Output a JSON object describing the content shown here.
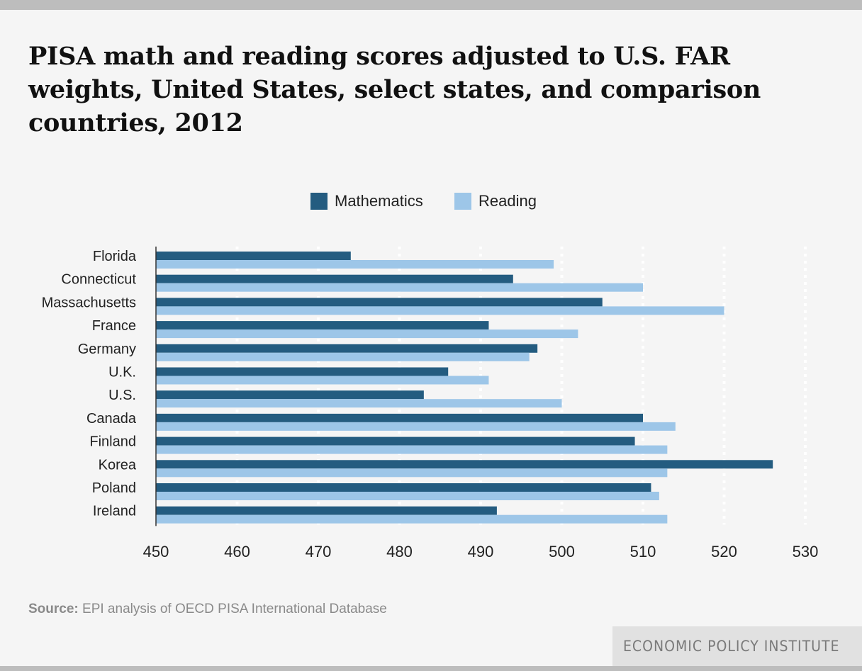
{
  "title": "PISA math and reading scores adjusted to U.S. FAR weights, United States, select states, and comparison countries, 2012",
  "legend": {
    "math_label": "Mathematics",
    "reading_label": "Reading"
  },
  "colors": {
    "math": "#245c80",
    "reading": "#9dc6e8",
    "grid": "#ffffff",
    "axis": "#333333",
    "text": "#222222"
  },
  "source": {
    "label": "Source:",
    "text": " EPI analysis of OECD PISA International Database"
  },
  "brand": "ECONOMIC POLICY INSTITUTE",
  "chart_data": {
    "type": "bar",
    "orientation": "horizontal",
    "title": "PISA math and reading scores adjusted to U.S. FAR weights, United States, select states, and comparison countries, 2012",
    "categories": [
      "Florida",
      "Connecticut",
      "Massachusetts",
      "France",
      "Germany",
      "U.K.",
      "U.S.",
      "Canada",
      "Finland",
      "Korea",
      "Poland",
      "Ireland"
    ],
    "series": [
      {
        "name": "Mathematics",
        "values": [
          474,
          494,
          505,
          491,
          497,
          486,
          483,
          510,
          509,
          526,
          511,
          492
        ]
      },
      {
        "name": "Reading",
        "values": [
          499,
          510,
          520,
          502,
          496,
          491,
          500,
          514,
          513,
          513,
          512,
          513
        ]
      }
    ],
    "xlim": [
      450,
      530
    ],
    "xticks": [
      "450",
      "460",
      "470",
      "480",
      "490",
      "500",
      "510",
      "520",
      "530"
    ],
    "xlabel": "",
    "ylabel": "",
    "grid": true,
    "legend_position": "top-center"
  }
}
